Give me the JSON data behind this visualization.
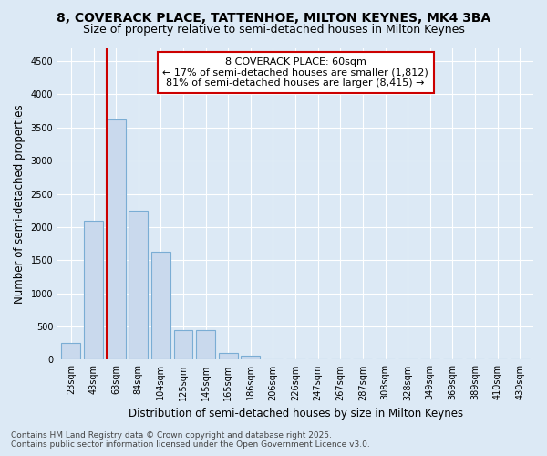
{
  "title_line1": "8, COVERACK PLACE, TATTENHOE, MILTON KEYNES, MK4 3BA",
  "title_line2": "Size of property relative to semi-detached houses in Milton Keynes",
  "xlabel": "Distribution of semi-detached houses by size in Milton Keynes",
  "ylabel": "Number of semi-detached properties",
  "categories": [
    "23sqm",
    "43sqm",
    "63sqm",
    "84sqm",
    "104sqm",
    "125sqm",
    "145sqm",
    "165sqm",
    "186sqm",
    "206sqm",
    "226sqm",
    "247sqm",
    "267sqm",
    "287sqm",
    "308sqm",
    "328sqm",
    "349sqm",
    "369sqm",
    "389sqm",
    "410sqm",
    "430sqm"
  ],
  "values": [
    250,
    2100,
    3625,
    2250,
    1625,
    450,
    450,
    100,
    55,
    0,
    0,
    0,
    0,
    0,
    0,
    0,
    0,
    0,
    0,
    0,
    0
  ],
  "bar_color": "#c9d9ed",
  "bar_edge_color": "#7aadd4",
  "highlight_bar_index": 1,
  "red_line_bar_index": 2,
  "property_label": "8 COVERACK PLACE: 60sqm",
  "smaller_pct": "17%",
  "smaller_n": "1,812",
  "larger_pct": "81%",
  "larger_n": "8,415",
  "annotation_box_edge_color": "#cc0000",
  "ylim": [
    0,
    4700
  ],
  "yticks": [
    0,
    500,
    1000,
    1500,
    2000,
    2500,
    3000,
    3500,
    4000,
    4500
  ],
  "background_color": "#dce9f5",
  "plot_bg_color": "#dce9f5",
  "grid_color": "#ffffff",
  "footer_line1": "Contains HM Land Registry data © Crown copyright and database right 2025.",
  "footer_line2": "Contains public sector information licensed under the Open Government Licence v3.0.",
  "title_fontsize": 10,
  "subtitle_fontsize": 9,
  "axis_label_fontsize": 8.5,
  "tick_fontsize": 7,
  "annotation_fontsize": 8,
  "footer_fontsize": 6.5
}
